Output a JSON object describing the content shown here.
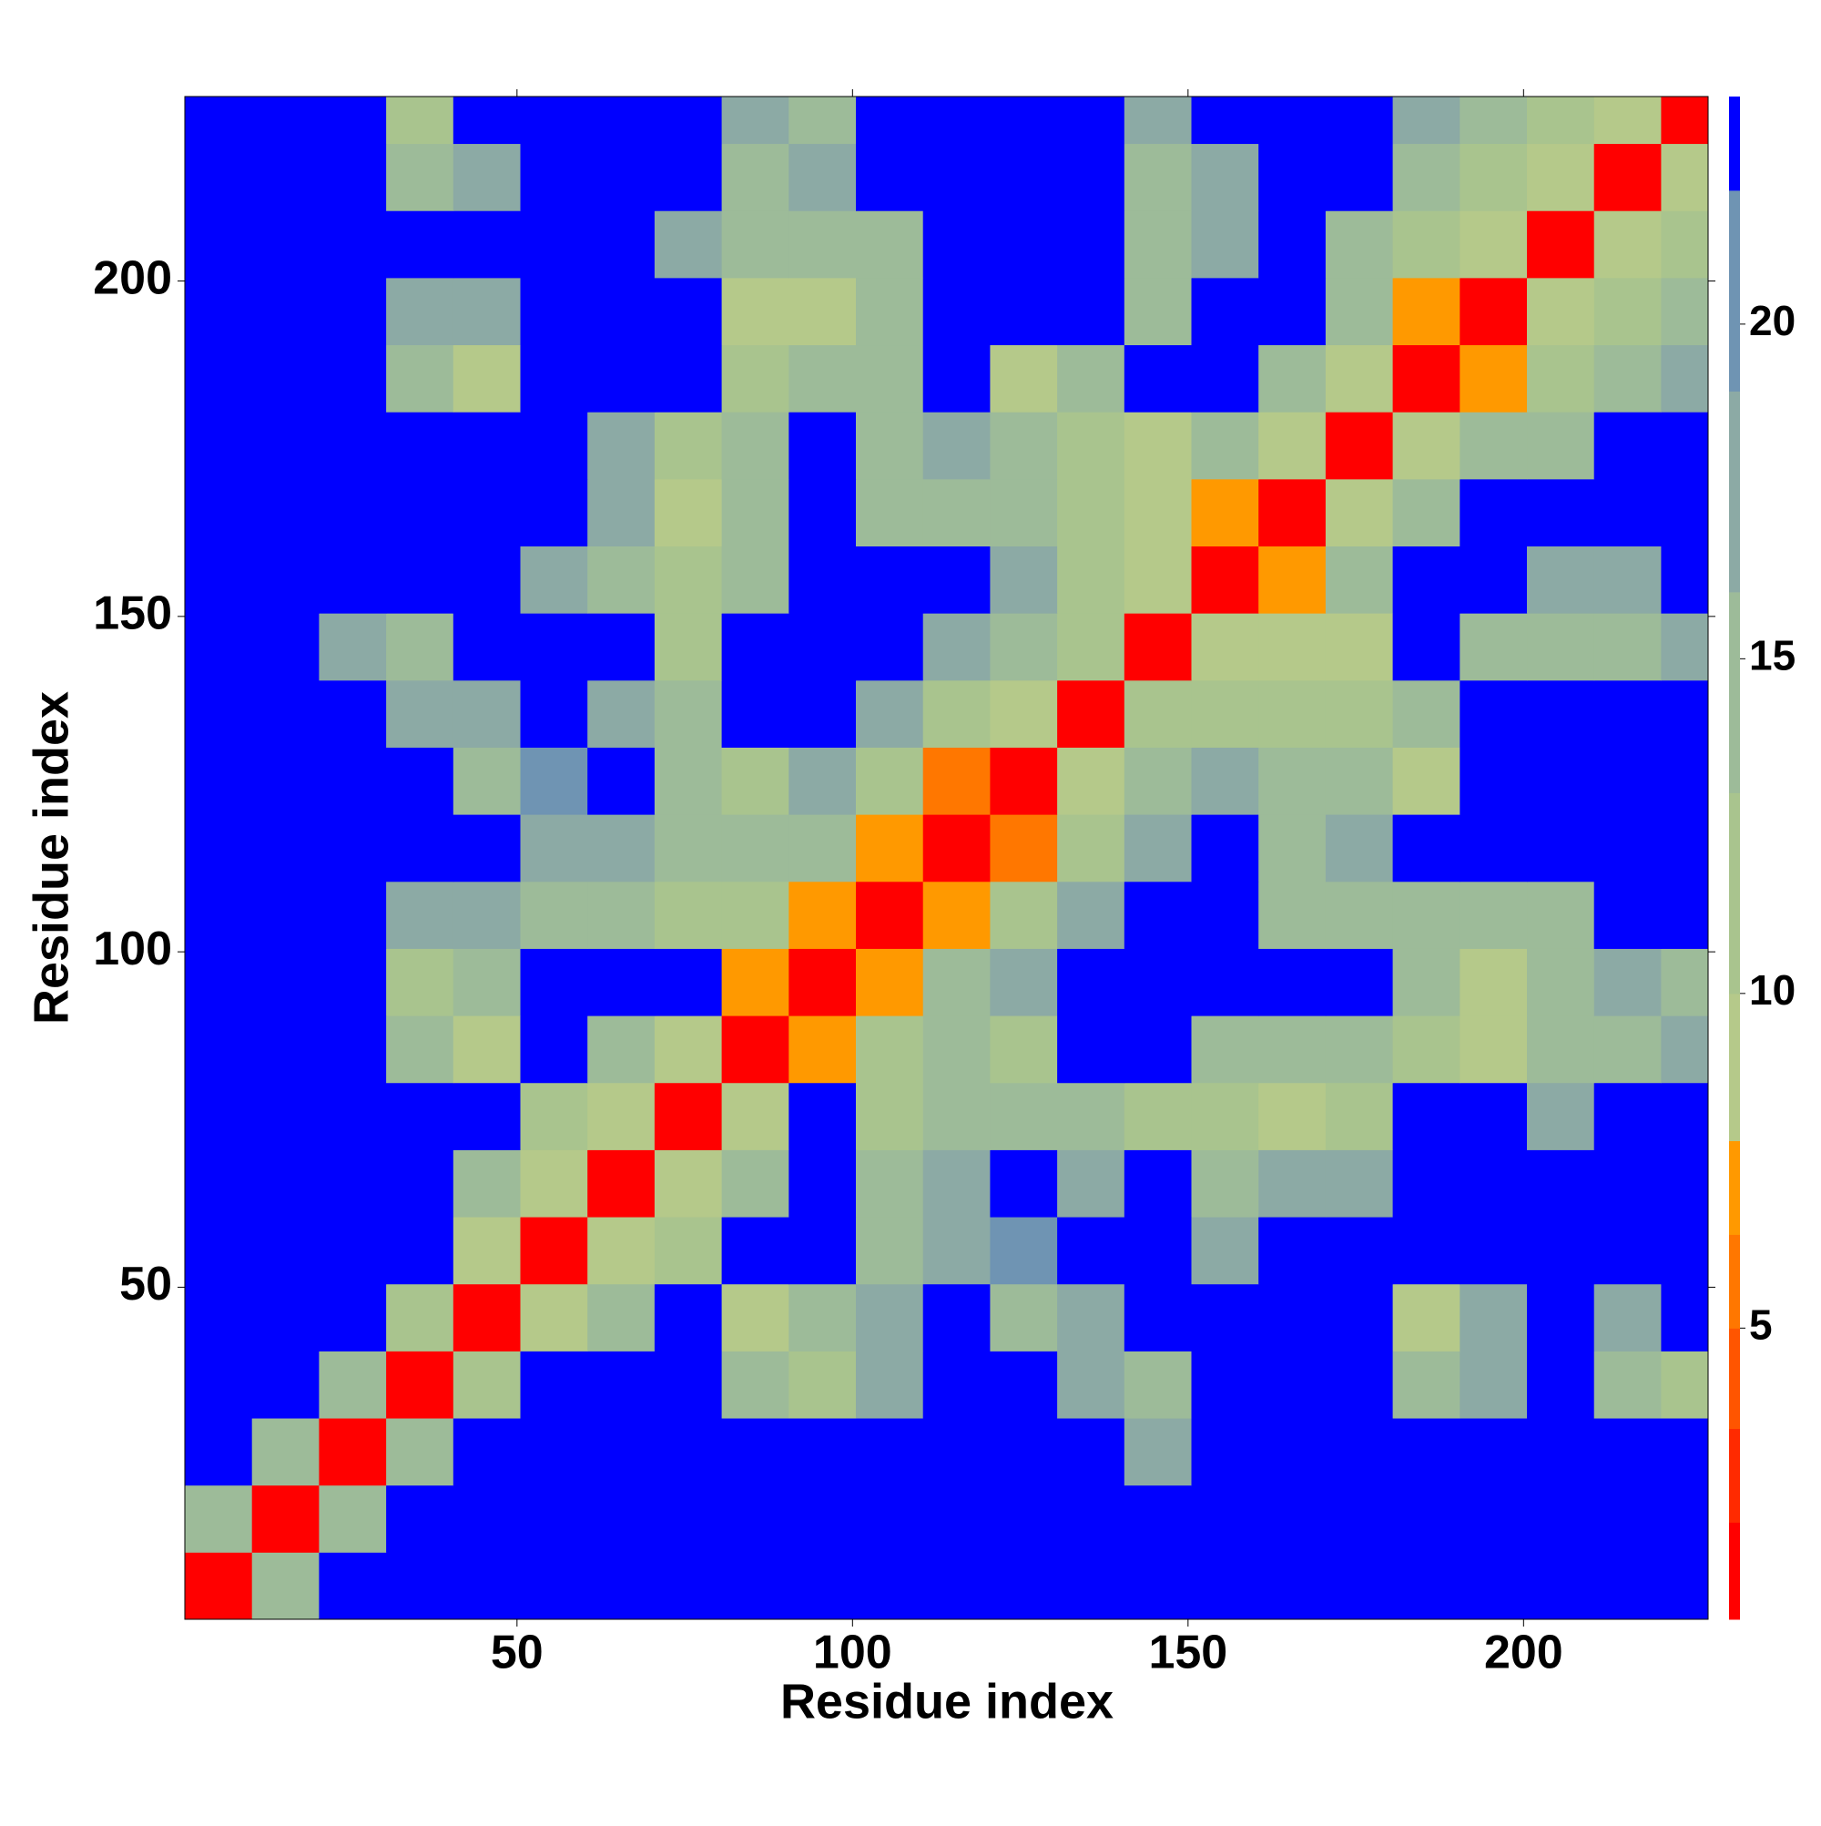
{
  "chart_data": {
    "type": "heatmap",
    "xlabel": "Residue index",
    "ylabel": "Residue index",
    "xlim": [
      0.5,
      227.5
    ],
    "ylim": [
      0.5,
      227.5
    ],
    "xticks": [
      50,
      100,
      150,
      200
    ],
    "yticks": [
      50,
      100,
      150,
      200
    ],
    "bins": [
      0.5,
      10.5,
      20.5,
      30.5,
      40.5,
      50.5,
      60.5,
      70.5,
      80.5,
      90.5,
      100.5,
      110.5,
      120.5,
      130.5,
      140.5,
      150.5,
      160.5,
      170.5,
      180.5,
      190.5,
      200.5,
      210.5,
      220.5,
      227.5
    ],
    "z": [
      [
        2,
        14,
        23,
        23,
        23,
        23,
        23,
        23,
        23,
        23,
        23,
        23,
        23,
        23,
        23,
        23,
        23,
        23,
        23,
        23,
        23,
        23,
        23
      ],
      [
        14,
        2,
        14,
        23,
        23,
        23,
        23,
        23,
        23,
        23,
        23,
        23,
        23,
        23,
        23,
        23,
        23,
        23,
        23,
        23,
        23,
        23,
        23
      ],
      [
        23,
        14,
        2,
        13,
        23,
        23,
        23,
        23,
        23,
        23,
        23,
        23,
        23,
        23,
        16,
        23,
        23,
        23,
        23,
        23,
        23,
        23,
        23
      ],
      [
        23,
        23,
        13,
        2,
        12,
        23,
        23,
        23,
        15,
        12,
        17,
        23,
        23,
        17,
        15,
        23,
        23,
        23,
        14,
        17,
        23,
        15,
        12
      ],
      [
        23,
        23,
        23,
        12,
        2,
        9,
        15,
        23,
        9,
        15,
        16,
        23,
        15,
        16,
        23,
        23,
        23,
        23,
        8,
        16,
        23,
        16,
        23
      ],
      [
        23,
        23,
        23,
        23,
        9,
        2,
        8,
        12,
        23,
        23,
        15,
        18,
        19,
        23,
        23,
        16,
        23,
        23,
        23,
        23,
        23,
        23,
        23
      ],
      [
        23,
        23,
        23,
        23,
        15,
        8,
        2,
        8,
        14,
        23,
        13,
        16,
        23,
        16,
        23,
        14,
        17,
        16,
        23,
        23,
        23,
        23,
        23
      ],
      [
        23,
        23,
        23,
        23,
        23,
        12,
        8,
        2,
        9,
        23,
        10,
        14,
        15,
        14,
        12,
        12,
        8,
        10,
        23,
        23,
        17,
        23,
        23
      ],
      [
        23,
        23,
        23,
        15,
        9,
        23,
        14,
        9,
        2,
        7,
        10,
        14,
        12,
        23,
        23,
        14,
        14,
        15,
        12,
        9,
        13,
        15,
        16
      ],
      [
        23,
        23,
        23,
        12,
        15,
        23,
        23,
        23,
        7,
        2,
        7,
        15,
        17,
        23,
        23,
        23,
        23,
        23,
        13,
        8,
        13,
        16,
        15
      ],
      [
        23,
        23,
        23,
        17,
        16,
        15,
        13,
        10,
        10,
        7,
        2,
        7,
        12,
        17,
        23,
        23,
        14,
        15,
        14,
        13,
        15,
        23,
        23
      ],
      [
        23,
        23,
        23,
        23,
        23,
        18,
        16,
        14,
        14,
        15,
        7,
        2,
        6,
        12,
        16,
        23,
        14,
        16,
        23,
        23,
        23,
        23,
        23
      ],
      [
        23,
        23,
        23,
        23,
        15,
        19,
        23,
        15,
        12,
        17,
        12,
        6,
        2,
        8,
        15,
        16,
        13,
        14,
        9,
        23,
        23,
        23,
        23
      ],
      [
        23,
        23,
        23,
        17,
        16,
        23,
        16,
        14,
        23,
        23,
        17,
        12,
        8,
        2,
        12,
        12,
        10,
        12,
        15,
        23,
        23,
        23,
        23
      ],
      [
        23,
        23,
        16,
        15,
        23,
        23,
        23,
        12,
        23,
        23,
        23,
        16,
        15,
        12,
        2,
        9,
        9,
        8,
        23,
        14,
        13,
        15,
        16
      ],
      [
        23,
        23,
        23,
        23,
        23,
        16,
        14,
        12,
        14,
        23,
        23,
        23,
        16,
        12,
        9,
        2,
        7,
        15,
        23,
        23,
        16,
        16,
        23
      ],
      [
        23,
        23,
        23,
        23,
        23,
        23,
        17,
        8,
        14,
        23,
        14,
        14,
        13,
        10,
        9,
        7,
        2,
        8,
        14,
        23,
        23,
        23,
        23
      ],
      [
        23,
        23,
        23,
        23,
        23,
        23,
        16,
        10,
        15,
        23,
        15,
        16,
        14,
        12,
        8,
        15,
        8,
        2,
        8,
        13,
        15,
        23,
        23
      ],
      [
        23,
        23,
        23,
        14,
        8,
        23,
        23,
        23,
        12,
        13,
        14,
        23,
        9,
        15,
        23,
        23,
        14,
        8,
        2,
        7,
        10,
        14,
        17
      ],
      [
        23,
        23,
        23,
        17,
        16,
        23,
        23,
        23,
        9,
        8,
        13,
        23,
        23,
        23,
        14,
        23,
        23,
        13,
        7,
        2,
        8,
        10,
        14
      ],
      [
        23,
        23,
        23,
        23,
        23,
        23,
        23,
        17,
        13,
        13,
        15,
        23,
        23,
        23,
        13,
        16,
        23,
        15,
        10,
        8,
        2,
        8,
        12
      ],
      [
        23,
        23,
        23,
        15,
        16,
        23,
        23,
        23,
        15,
        16,
        23,
        23,
        23,
        23,
        15,
        16,
        23,
        23,
        14,
        10,
        8,
        2,
        8
      ],
      [
        23,
        23,
        23,
        12,
        23,
        23,
        23,
        23,
        16,
        15,
        23,
        23,
        23,
        23,
        16,
        23,
        23,
        23,
        17,
        14,
        12,
        8,
        2
      ]
    ],
    "colorbar": {
      "lim": [
        0.65,
        23.4
      ],
      "ticks": [
        5,
        10,
        15,
        20
      ],
      "levels": [
        0.65,
        2.1,
        3.5,
        5,
        6.4,
        7.8,
        10,
        13,
        16,
        19,
        22,
        23.4
      ],
      "colors": [
        "#ff0000",
        "#ff2a00",
        "#ff5500",
        "#ff7700",
        "#ff9900",
        "#b5c98a",
        "#a9c48e",
        "#9dbb99",
        "#8caaa5",
        "#6f94b3",
        "#0000ff"
      ]
    }
  }
}
